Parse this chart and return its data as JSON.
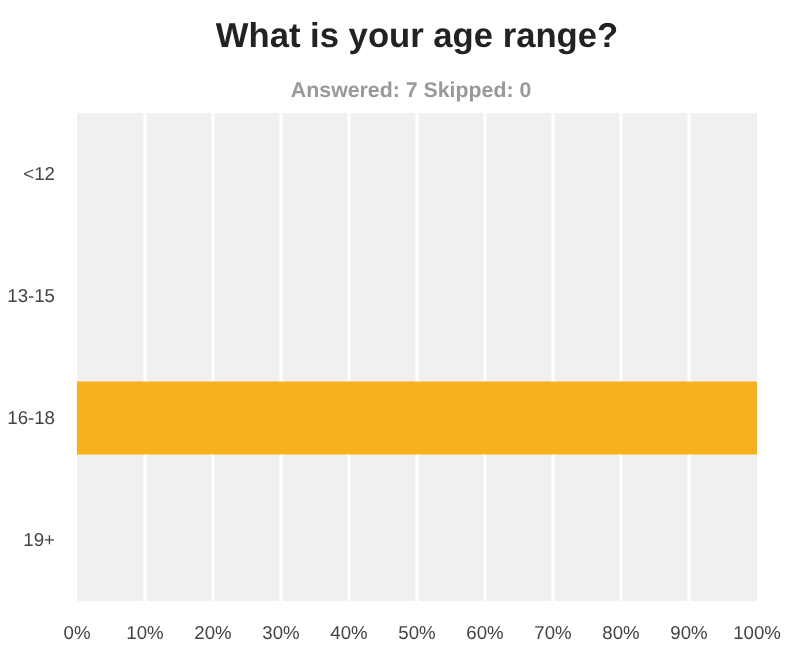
{
  "chart_data": {
    "type": "bar",
    "orientation": "horizontal",
    "title": "What is your age range?",
    "subtitle": "Answered: 7   Skipped: 0",
    "categories": [
      "<12",
      "13-15",
      "16-18",
      "19+"
    ],
    "values": [
      0,
      0,
      100,
      0
    ],
    "color": "#f7b11e",
    "xlim": [
      0,
      100
    ],
    "xticks": [
      {
        "value": 0,
        "label": "0%"
      },
      {
        "value": 10,
        "label": "10%"
      },
      {
        "value": 20,
        "label": "20%"
      },
      {
        "value": 30,
        "label": "30%"
      },
      {
        "value": 40,
        "label": "40%"
      },
      {
        "value": 50,
        "label": "50%"
      },
      {
        "value": 60,
        "label": "60%"
      },
      {
        "value": 70,
        "label": "70%"
      },
      {
        "value": 80,
        "label": "80%"
      },
      {
        "value": 90,
        "label": "90%"
      },
      {
        "value": 100,
        "label": "100%"
      }
    ],
    "grid": "x"
  }
}
